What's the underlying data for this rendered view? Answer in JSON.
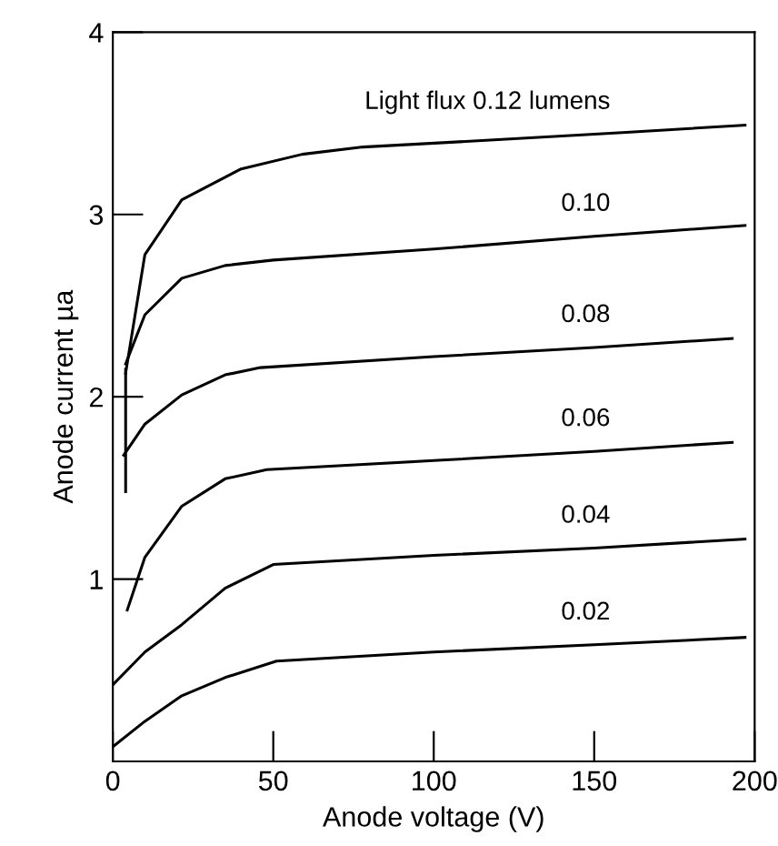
{
  "chart_data": {
    "type": "line",
    "xlabel": "Anode voltage (V)",
    "ylabel": "Anode current µa",
    "xlim": [
      0,
      200
    ],
    "ylim": [
      0,
      4
    ],
    "xticks": [
      0,
      50,
      100,
      150,
      200
    ],
    "yticks": [
      1,
      2,
      3,
      4
    ],
    "grid": false,
    "legend": false,
    "marker": "none",
    "line_style": "solid",
    "series": [
      {
        "name": "Light flux 0.12 lumens",
        "color": "#000000",
        "x": [
          4,
          10,
          21.5,
          40,
          59,
          78,
          120,
          160,
          197
        ],
        "values": [
          2.13,
          2.78,
          3.08,
          3.25,
          3.33,
          3.37,
          3.41,
          3.45,
          3.49
        ]
      },
      {
        "name": "0.10",
        "color": "#000000",
        "x": [
          4,
          10,
          21.5,
          35,
          50,
          100,
          150,
          197
        ],
        "values": [
          2.18,
          2.45,
          2.65,
          2.72,
          2.75,
          2.81,
          2.88,
          2.94
        ]
      },
      {
        "name": "0.08",
        "color": "#000000",
        "x": [
          3.4,
          10,
          21.5,
          35,
          46,
          100,
          150,
          193
        ],
        "values": [
          1.68,
          1.85,
          2.01,
          2.12,
          2.16,
          2.22,
          2.27,
          2.32
        ]
      },
      {
        "name": "0.06",
        "color": "#000000",
        "x": [
          4.5,
          10,
          21.5,
          35,
          48,
          100,
          150,
          193
        ],
        "values": [
          0.83,
          1.12,
          1.4,
          1.55,
          1.6,
          1.65,
          1.7,
          1.75
        ]
      },
      {
        "name": "0.04",
        "color": "#000000",
        "x": [
          0,
          10,
          21.5,
          35,
          50,
          100,
          150,
          197
        ],
        "values": [
          0.42,
          0.6,
          0.75,
          0.95,
          1.08,
          1.13,
          1.17,
          1.22
        ]
      },
      {
        "name": "0.02",
        "color": "#000000",
        "x": [
          0,
          10,
          21.5,
          35,
          51,
          100,
          150,
          197
        ],
        "values": [
          0.08,
          0.22,
          0.36,
          0.46,
          0.55,
          0.6,
          0.64,
          0.68
        ]
      },
      {
        "color": "#000000",
        "x": [
          4,
          4
        ],
        "values": [
          1.48,
          2.15
        ]
      }
    ]
  }
}
